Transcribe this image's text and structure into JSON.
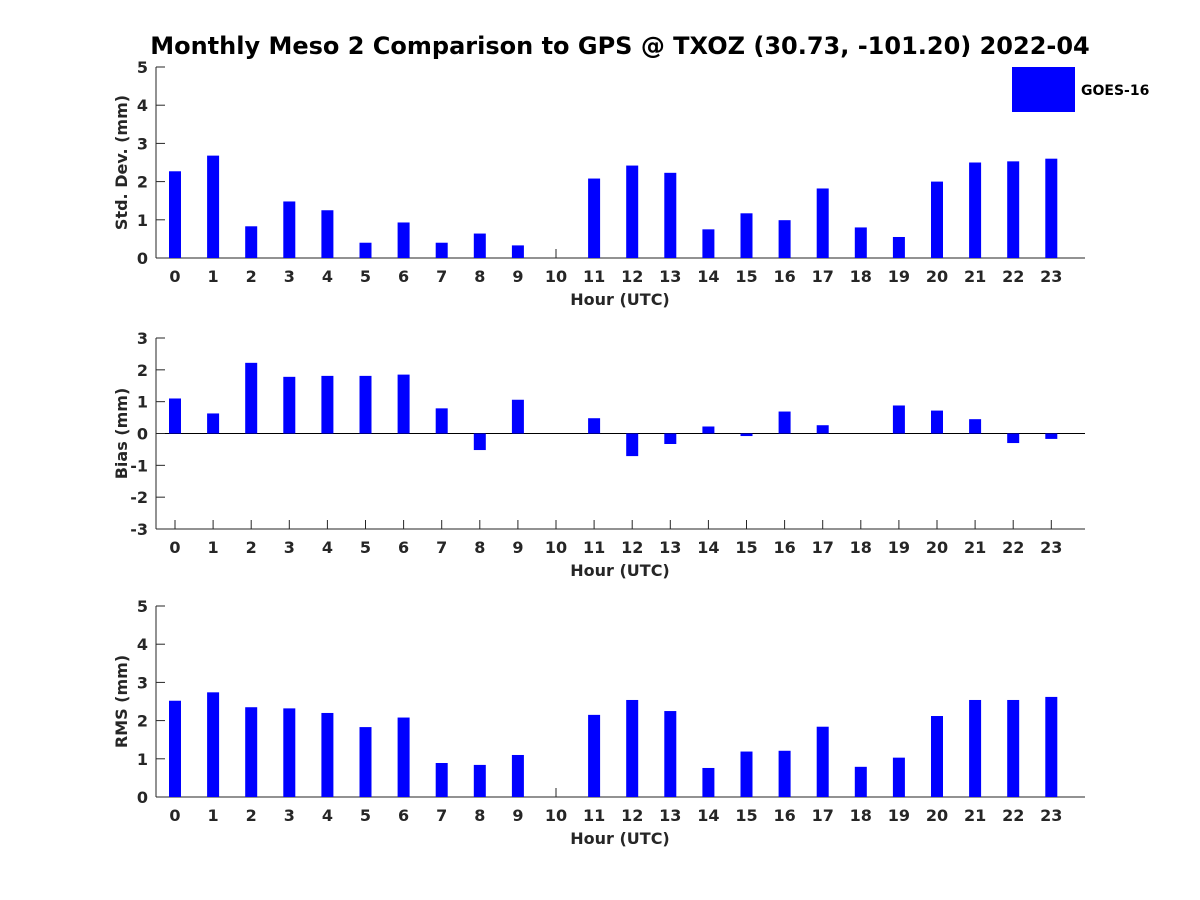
{
  "chart_data": {
    "type": "bar",
    "title": "Monthly Meso 2 Comparison to GPS @ TXOZ (30.73, -101.20) 2022-04",
    "legend": {
      "label": "GOES-16",
      "color": "#0000ff",
      "placement": "top-right"
    },
    "bar_color": "#0000ff",
    "categories": [
      "0",
      "1",
      "2",
      "3",
      "4",
      "5",
      "6",
      "7",
      "8",
      "9",
      "10",
      "11",
      "12",
      "13",
      "14",
      "15",
      "16",
      "17",
      "18",
      "19",
      "20",
      "21",
      "22",
      "23"
    ],
    "panels": [
      {
        "ylabel": "Std. Dev. (mm)",
        "xlabel": "Hour (UTC)",
        "ylim": [
          0,
          5
        ],
        "yticks": [
          0,
          1,
          2,
          3,
          4,
          5
        ],
        "values": [
          2.27,
          2.68,
          0.83,
          1.48,
          1.25,
          0.4,
          0.93,
          0.4,
          0.64,
          0.33,
          0.0,
          2.08,
          2.42,
          2.23,
          0.75,
          1.17,
          0.99,
          1.82,
          0.8,
          0.55,
          2.0,
          2.5,
          2.53,
          2.6
        ]
      },
      {
        "ylabel": "Bias (mm)",
        "xlabel": "Hour (UTC)",
        "ylim": [
          -3,
          3
        ],
        "yticks": [
          -3,
          -2,
          -1,
          0,
          1,
          2,
          3
        ],
        "values": [
          1.1,
          0.63,
          2.22,
          1.78,
          1.81,
          1.81,
          1.85,
          0.79,
          -0.52,
          1.06,
          0.0,
          0.48,
          -0.71,
          -0.33,
          0.22,
          -0.08,
          0.69,
          0.26,
          0.0,
          0.88,
          0.72,
          0.45,
          -0.3,
          -0.17
        ]
      },
      {
        "ylabel": "RMS (mm)",
        "xlabel": "Hour (UTC)",
        "ylim": [
          0,
          5
        ],
        "yticks": [
          0,
          1,
          2,
          3,
          4,
          5
        ],
        "values": [
          2.52,
          2.74,
          2.35,
          2.32,
          2.2,
          1.83,
          2.08,
          0.89,
          0.84,
          1.1,
          0.0,
          2.15,
          2.54,
          2.25,
          0.76,
          1.19,
          1.21,
          1.84,
          0.79,
          1.03,
          2.12,
          2.54,
          2.54,
          2.62
        ]
      }
    ]
  }
}
